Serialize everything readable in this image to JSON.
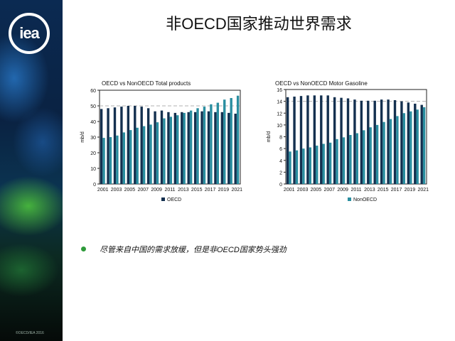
{
  "slide": {
    "title": "非OECD国家推动世界需求",
    "bullet": "尽管来自中国的需求放缓，但是非OECD国家势头强劲",
    "logo": "iea",
    "copyright": "©OECD/IEA 2016"
  },
  "colors": {
    "oecd": "#14304f",
    "nonoecd": "#2a8ea0",
    "bullet": "#2e9a3a"
  },
  "chart_data": [
    {
      "type": "bar",
      "title": "OECD vs NonOECD Total products",
      "ylabel": "mb/d",
      "ylim": [
        0,
        60
      ],
      "yticks": [
        "0",
        "10",
        "20",
        "30",
        "40",
        "50",
        "60"
      ],
      "x_tick_labels": [
        "2001",
        "2003",
        "2005",
        "2007",
        "2009",
        "2011",
        "2013",
        "2015",
        "2017",
        "2019",
        "2021"
      ],
      "categories": [
        2001,
        2002,
        2003,
        2004,
        2005,
        2006,
        2007,
        2008,
        2009,
        2010,
        2011,
        2012,
        2013,
        2014,
        2015,
        2016,
        2017,
        2018,
        2019,
        2020,
        2021
      ],
      "reference_line": 50,
      "legend": [
        "OECD"
      ],
      "series": [
        {
          "name": "OECD",
          "values": [
            48,
            48.5,
            49,
            49.5,
            50,
            50,
            49.5,
            48.5,
            46.5,
            47,
            46,
            45.5,
            46,
            46,
            46,
            46.5,
            46.5,
            46,
            46,
            45.5,
            45
          ]
        },
        {
          "name": "NonOECD",
          "values": [
            29.5,
            30,
            31,
            33,
            34.5,
            36,
            37,
            38,
            39.5,
            42,
            43,
            44,
            45.5,
            47,
            48.5,
            49.5,
            51,
            52,
            54,
            55,
            56.5
          ]
        }
      ]
    },
    {
      "type": "bar",
      "title": "OECD vs NonOECD Motor Gasoline",
      "ylabel": "mb/d",
      "ylim": [
        0,
        16
      ],
      "yticks": [
        "0",
        "2",
        "4",
        "6",
        "8",
        "10",
        "12",
        "14",
        "16"
      ],
      "x_tick_labels": [
        "2001",
        "2003",
        "2005",
        "2007",
        "2009",
        "2011",
        "2013",
        "2015",
        "2017",
        "2019",
        "2021"
      ],
      "categories": [
        2001,
        2002,
        2003,
        2004,
        2005,
        2006,
        2007,
        2008,
        2009,
        2010,
        2011,
        2012,
        2013,
        2014,
        2015,
        2016,
        2017,
        2018,
        2019,
        2020,
        2021
      ],
      "reference_line": 14,
      "legend": [
        "NonOECD"
      ],
      "series": [
        {
          "name": "OECD",
          "values": [
            14.7,
            14.8,
            14.9,
            15,
            15,
            15,
            15,
            14.7,
            14.6,
            14.5,
            14.3,
            14.1,
            14.1,
            14.1,
            14.3,
            14.3,
            14.2,
            14,
            13.8,
            13.6,
            13.4
          ]
        },
        {
          "name": "NonOECD",
          "values": [
            5.5,
            5.7,
            6,
            6.2,
            6.5,
            6.8,
            7,
            7.6,
            7.9,
            8.3,
            8.6,
            9.1,
            9.6,
            10,
            10.5,
            11,
            11.5,
            12,
            12.3,
            12.6,
            13
          ]
        }
      ]
    }
  ]
}
